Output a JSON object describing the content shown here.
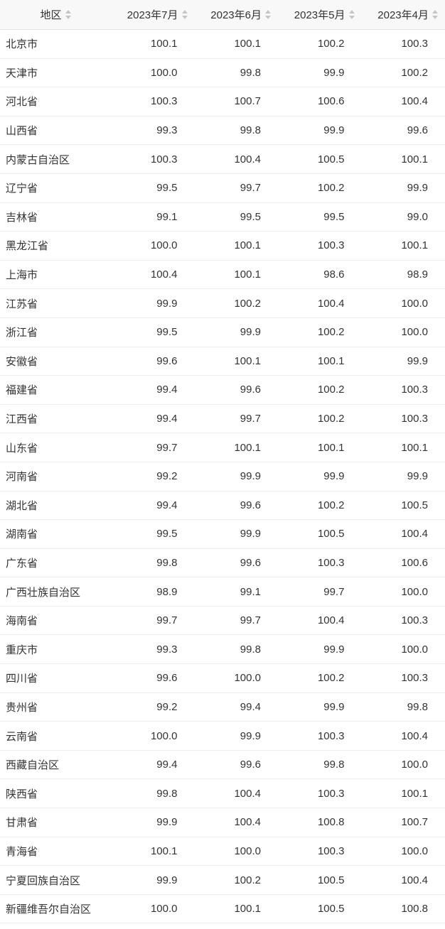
{
  "table": {
    "columns": [
      {
        "label": "地区",
        "sortable": true
      },
      {
        "label": "2023年7月",
        "sortable": true
      },
      {
        "label": "2023年6月",
        "sortable": true
      },
      {
        "label": "2023年5月",
        "sortable": true
      },
      {
        "label": "2023年4月",
        "sortable": true
      }
    ],
    "rows": [
      {
        "region": "北京市",
        "values": [
          "100.1",
          "100.1",
          "100.2",
          "100.3"
        ]
      },
      {
        "region": "天津市",
        "values": [
          "100.0",
          "99.8",
          "99.9",
          "100.2"
        ]
      },
      {
        "region": "河北省",
        "values": [
          "100.3",
          "100.7",
          "100.6",
          "100.4"
        ]
      },
      {
        "region": "山西省",
        "values": [
          "99.3",
          "99.8",
          "99.9",
          "99.6"
        ]
      },
      {
        "region": "内蒙古自治区",
        "values": [
          "100.3",
          "100.4",
          "100.5",
          "100.1"
        ]
      },
      {
        "region": "辽宁省",
        "values": [
          "99.5",
          "99.7",
          "100.2",
          "99.9"
        ]
      },
      {
        "region": "吉林省",
        "values": [
          "99.1",
          "99.5",
          "99.5",
          "99.0"
        ]
      },
      {
        "region": "黑龙江省",
        "values": [
          "100.0",
          "100.1",
          "100.3",
          "100.1"
        ]
      },
      {
        "region": "上海市",
        "values": [
          "100.4",
          "100.1",
          "98.6",
          "98.9"
        ]
      },
      {
        "region": "江苏省",
        "values": [
          "99.9",
          "100.2",
          "100.4",
          "100.0"
        ]
      },
      {
        "region": "浙江省",
        "values": [
          "99.5",
          "99.9",
          "100.2",
          "100.0"
        ]
      },
      {
        "region": "安徽省",
        "values": [
          "99.6",
          "100.1",
          "100.1",
          "99.9"
        ]
      },
      {
        "region": "福建省",
        "values": [
          "99.4",
          "99.6",
          "100.2",
          "100.3"
        ]
      },
      {
        "region": "江西省",
        "values": [
          "99.4",
          "99.7",
          "100.2",
          "100.3"
        ]
      },
      {
        "region": "山东省",
        "values": [
          "99.7",
          "100.1",
          "100.1",
          "100.1"
        ]
      },
      {
        "region": "河南省",
        "values": [
          "99.2",
          "99.9",
          "99.9",
          "99.9"
        ]
      },
      {
        "region": "湖北省",
        "values": [
          "99.4",
          "99.6",
          "100.2",
          "100.5"
        ]
      },
      {
        "region": "湖南省",
        "values": [
          "99.5",
          "99.9",
          "100.5",
          "100.4"
        ]
      },
      {
        "region": "广东省",
        "values": [
          "99.8",
          "99.6",
          "100.3",
          "100.6"
        ]
      },
      {
        "region": "广西壮族自治区",
        "values": [
          "98.9",
          "99.1",
          "99.7",
          "100.0"
        ]
      },
      {
        "region": "海南省",
        "values": [
          "99.7",
          "99.7",
          "100.4",
          "100.3"
        ]
      },
      {
        "region": "重庆市",
        "values": [
          "99.3",
          "99.8",
          "99.9",
          "100.0"
        ]
      },
      {
        "region": "四川省",
        "values": [
          "99.6",
          "100.0",
          "100.2",
          "100.3"
        ]
      },
      {
        "region": "贵州省",
        "values": [
          "99.2",
          "99.4",
          "99.9",
          "99.8"
        ]
      },
      {
        "region": "云南省",
        "values": [
          "100.0",
          "99.9",
          "100.3",
          "100.4"
        ]
      },
      {
        "region": "西藏自治区",
        "values": [
          "99.4",
          "99.6",
          "99.8",
          "100.0"
        ]
      },
      {
        "region": "陕西省",
        "values": [
          "99.8",
          "100.4",
          "100.3",
          "100.1"
        ]
      },
      {
        "region": "甘肃省",
        "values": [
          "99.9",
          "100.4",
          "100.8",
          "100.7"
        ]
      },
      {
        "region": "青海省",
        "values": [
          "100.1",
          "100.0",
          "100.3",
          "100.0"
        ]
      },
      {
        "region": "宁夏回族自治区",
        "values": [
          "99.9",
          "100.2",
          "100.5",
          "100.4"
        ]
      },
      {
        "region": "新疆维吾尔自治区",
        "values": [
          "100.0",
          "100.1",
          "100.5",
          "100.8"
        ]
      }
    ]
  },
  "colors": {
    "header_bg": "#f8f8f8",
    "header_border": "#e4e4e4",
    "row_border": "#eeeeee",
    "text": "#333333",
    "sort_icon": "#c6c6c6"
  }
}
